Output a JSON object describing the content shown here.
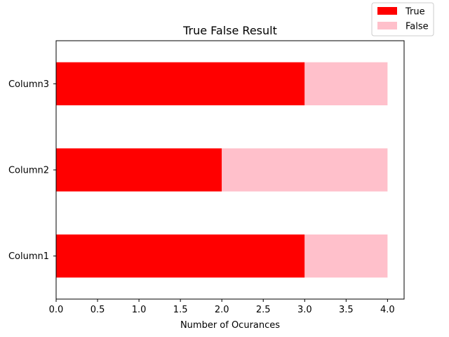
{
  "chart_data": {
    "type": "bar",
    "orientation": "horizontal",
    "stacked": true,
    "title": "True False Result",
    "xlabel": "Number of Ocurances",
    "ylabel": "",
    "categories": [
      "Column1",
      "Column2",
      "Column3"
    ],
    "series": [
      {
        "name": "True",
        "values": [
          3,
          2,
          3
        ],
        "color": "#ff0000"
      },
      {
        "name": "False",
        "values": [
          1,
          2,
          1
        ],
        "color": "#ffc0cb"
      }
    ],
    "xlim": [
      0,
      4.2
    ],
    "xticks": [
      "0.0",
      "0.5",
      "1.0",
      "1.5",
      "2.0",
      "2.5",
      "3.0",
      "3.5",
      "4.0"
    ],
    "grid": false,
    "legend_position": "top-right"
  }
}
